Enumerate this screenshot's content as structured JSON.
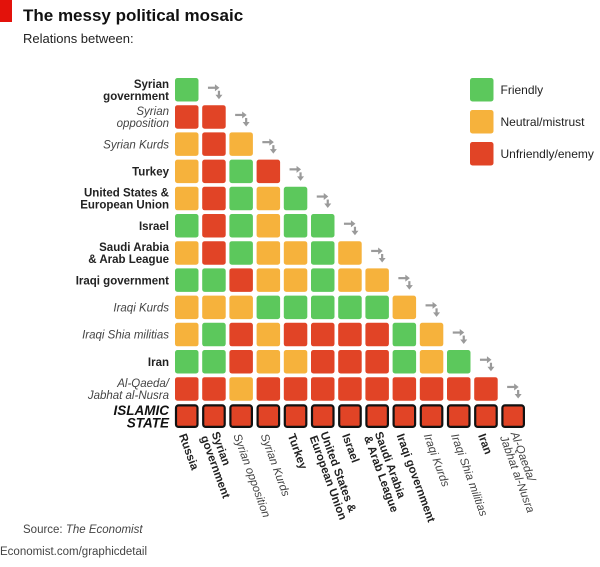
{
  "header": {
    "title": "The messy political mosaic",
    "subtitle": "Relations between:"
  },
  "footer": {
    "source_label": "Source:",
    "source_name": "The Economist",
    "url": "Economist.com/graphicdetail"
  },
  "colors": {
    "friendly": "#5cc85c",
    "neutral": "#f6b23c",
    "enemy": "#e14426",
    "cell_border": "#111111",
    "arrow": "#9a9a9a"
  },
  "chart_data": {
    "type": "heatmap",
    "title": "The messy political mosaic",
    "subtitle": "Relations between:",
    "legend": {
      "placement": "top-right",
      "items": [
        {
          "key": "F",
          "label": "Friendly"
        },
        {
          "key": "N",
          "label": "Neutral/mistrust"
        },
        {
          "key": "E",
          "label": "Unfriendly/enemy"
        }
      ]
    },
    "row_labels": [
      {
        "lines": [
          "Syrian",
          "government"
        ],
        "style": "bold"
      },
      {
        "lines": [
          "Syrian",
          "opposition"
        ],
        "style": "italic"
      },
      {
        "lines": [
          "Syrian Kurds"
        ],
        "style": "italic"
      },
      {
        "lines": [
          "Turkey"
        ],
        "style": "bold"
      },
      {
        "lines": [
          "United States &",
          "European Union"
        ],
        "style": "bold"
      },
      {
        "lines": [
          "Israel"
        ],
        "style": "bold"
      },
      {
        "lines": [
          "Saudi Arabia",
          "& Arab League"
        ],
        "style": "bold"
      },
      {
        "lines": [
          "Iraqi government"
        ],
        "style": "bold"
      },
      {
        "lines": [
          "Iraqi Kurds"
        ],
        "style": "italic"
      },
      {
        "lines": [
          "Iraqi Shia militias"
        ],
        "style": "italic"
      },
      {
        "lines": [
          "Iran"
        ],
        "style": "bold"
      },
      {
        "lines": [
          "Al-Qaeda/",
          "Jabhat al-Nusra"
        ],
        "style": "italic"
      },
      {
        "lines": [
          "ISLAMIC",
          "STATE"
        ],
        "style": "bold-italic"
      }
    ],
    "column_labels": [
      {
        "lines": [
          "Russia"
        ],
        "style": "bold"
      },
      {
        "lines": [
          "Syrian",
          "government"
        ],
        "style": "bold"
      },
      {
        "lines": [
          "Syrian opposition"
        ],
        "style": "italic"
      },
      {
        "lines": [
          "Syrian Kurds"
        ],
        "style": "italic"
      },
      {
        "lines": [
          "Turkey"
        ],
        "style": "bold"
      },
      {
        "lines": [
          "United States &",
          "European Union"
        ],
        "style": "bold"
      },
      {
        "lines": [
          "Israel"
        ],
        "style": "bold"
      },
      {
        "lines": [
          "Saudi Arabia",
          "& Arab League"
        ],
        "style": "bold"
      },
      {
        "lines": [
          "Iraqi government"
        ],
        "style": "bold"
      },
      {
        "lines": [
          "Iraqi Kurds"
        ],
        "style": "italic"
      },
      {
        "lines": [
          "Iraqi Shia militias"
        ],
        "style": "italic"
      },
      {
        "lines": [
          "Iran"
        ],
        "style": "bold"
      },
      {
        "lines": [
          "Al-Qaeda/",
          "Jabhat al-Nusra"
        ],
        "style": "italic"
      }
    ],
    "matrix": [
      [
        "F"
      ],
      [
        "E",
        "E"
      ],
      [
        "N",
        "E",
        "N"
      ],
      [
        "N",
        "E",
        "F",
        "E"
      ],
      [
        "N",
        "E",
        "F",
        "N",
        "F"
      ],
      [
        "F",
        "E",
        "F",
        "N",
        "F",
        "F"
      ],
      [
        "N",
        "E",
        "F",
        "N",
        "N",
        "F",
        "N"
      ],
      [
        "F",
        "F",
        "E",
        "N",
        "N",
        "F",
        "N",
        "N"
      ],
      [
        "N",
        "N",
        "N",
        "F",
        "F",
        "F",
        "F",
        "F",
        "N"
      ],
      [
        "N",
        "F",
        "E",
        "N",
        "E",
        "E",
        "E",
        "E",
        "F",
        "N"
      ],
      [
        "F",
        "F",
        "E",
        "N",
        "N",
        "E",
        "E",
        "E",
        "F",
        "N",
        "F"
      ],
      [
        "E",
        "E",
        "N",
        "E",
        "E",
        "E",
        "E",
        "E",
        "E",
        "E",
        "E",
        "E"
      ],
      [
        "E",
        "E",
        "E",
        "E",
        "E",
        "E",
        "E",
        "E",
        "E",
        "E",
        "E",
        "E",
        "E"
      ]
    ],
    "highlight_last_row": true
  }
}
